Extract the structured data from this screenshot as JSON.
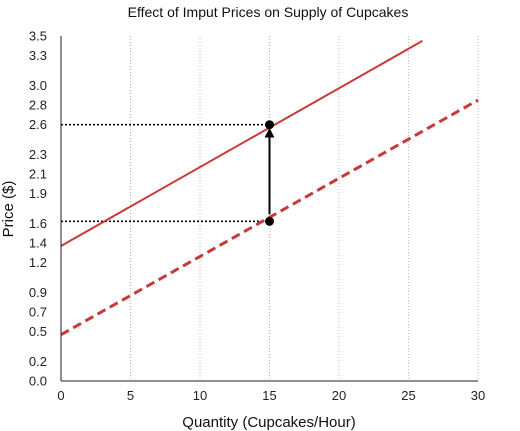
{
  "chart_data": {
    "type": "line",
    "title": "Effect of Imput Prices on Supply of Cupcakes",
    "xlabel": "Quantity (Cupcakes/Hour)",
    "ylabel": "Price ($)",
    "xlim": [
      0,
      30
    ],
    "ylim": [
      0.0,
      3.5
    ],
    "x_ticks": [
      0,
      5,
      10,
      15,
      20,
      25,
      30
    ],
    "y_ticks": [
      0.0,
      0.2,
      0.5,
      0.7,
      0.9,
      1.2,
      1.4,
      1.6,
      1.9,
      2.1,
      2.3,
      2.6,
      2.8,
      3.0,
      3.3,
      3.5
    ],
    "y_tick_labels": [
      "0.0",
      "0.2",
      "0.5",
      "0.7",
      "0.9",
      "1.2",
      "1.4",
      "1.6",
      "1.9",
      "2.1",
      "2.3",
      "2.6",
      "2.8",
      "3.0",
      "3.3",
      "3.5"
    ],
    "grid": "vertical dotted",
    "series": [
      {
        "style": "solid",
        "color": "#c83a3a",
        "x": [
          0,
          26
        ],
        "y": [
          1.37,
          3.45
        ]
      },
      {
        "style": "dashed",
        "color": "#c83a3a",
        "x": [
          0,
          30
        ],
        "y": [
          0.47,
          2.85
        ]
      }
    ],
    "points": [
      {
        "x": 15,
        "y": 2.6
      },
      {
        "x": 15,
        "y": 1.62
      }
    ],
    "guides": [
      {
        "from": [
          0,
          2.6
        ],
        "to": [
          15,
          2.6
        ]
      },
      {
        "from": [
          0,
          1.62
        ],
        "to": [
          15,
          1.62
        ]
      }
    ],
    "arrow": {
      "from": [
        15,
        1.62
      ],
      "to": [
        15,
        2.6
      ]
    }
  }
}
